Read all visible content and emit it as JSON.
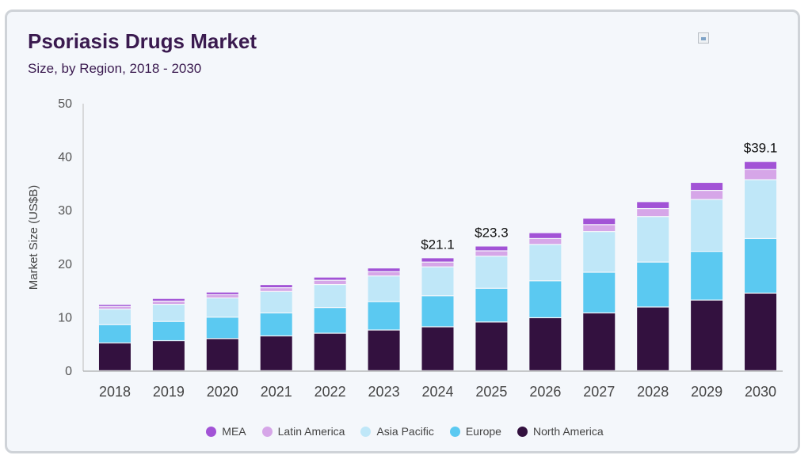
{
  "header": {
    "title": "Psoriasis Drugs Market",
    "subtitle": "Size, by Region, 2018 - 2030"
  },
  "colors": {
    "North America": "#33113f",
    "Europe": "#5bc9f1",
    "Asia Pacific": "#bfe7f8",
    "Latin America": "#d6a6e8",
    "MEA": "#a253d6"
  },
  "legend_order": [
    "MEA",
    "Latin America",
    "Asia Pacific",
    "Europe",
    "North America"
  ],
  "chart_data": {
    "type": "bar",
    "stacked": true,
    "ylabel": "Market Size (US$B)",
    "ylim": [
      0,
      50
    ],
    "yticks": [
      0,
      10,
      20,
      30,
      40,
      50
    ],
    "categories": [
      "2018",
      "2019",
      "2020",
      "2021",
      "2022",
      "2023",
      "2024",
      "2025",
      "2026",
      "2027",
      "2028",
      "2029",
      "2030"
    ],
    "series": [
      {
        "name": "North America",
        "values": [
          5.2,
          5.6,
          6.0,
          6.5,
          7.0,
          7.6,
          8.2,
          9.1,
          9.9,
          10.8,
          11.9,
          13.2,
          14.5
        ]
      },
      {
        "name": "Europe",
        "values": [
          3.4,
          3.6,
          4.0,
          4.3,
          4.8,
          5.3,
          5.8,
          6.3,
          6.9,
          7.6,
          8.4,
          9.1,
          10.2
        ]
      },
      {
        "name": "Asia Pacific",
        "values": [
          2.9,
          3.2,
          3.6,
          4.0,
          4.3,
          4.8,
          5.4,
          6.0,
          6.8,
          7.6,
          8.5,
          9.7,
          11.0
        ]
      },
      {
        "name": "Latin America",
        "values": [
          0.5,
          0.6,
          0.6,
          0.7,
          0.8,
          0.8,
          0.9,
          1.0,
          1.1,
          1.3,
          1.5,
          1.7,
          1.9
        ]
      },
      {
        "name": "MEA",
        "values": [
          0.4,
          0.5,
          0.5,
          0.6,
          0.6,
          0.7,
          0.8,
          0.9,
          1.1,
          1.2,
          1.3,
          1.5,
          1.5
        ]
      }
    ],
    "annotations": [
      {
        "category": "2024",
        "text": "$21.1"
      },
      {
        "category": "2025",
        "text": "$23.3"
      },
      {
        "category": "2030",
        "text": "$39.1"
      }
    ]
  }
}
